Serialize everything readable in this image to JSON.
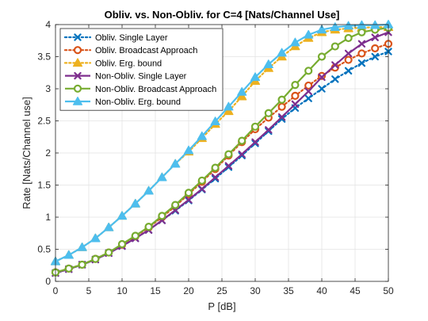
{
  "chart_data": {
    "type": "line",
    "title": "Obliv. vs. Non-Obliv. for C=4 [Nats/Channel Use]",
    "xlabel": "P [dB]",
    "ylabel": "Rate [Nats/Channel use]",
    "xlim": [
      0,
      50
    ],
    "ylim": [
      0,
      4
    ],
    "xticks": [
      0,
      5,
      10,
      15,
      20,
      25,
      30,
      35,
      40,
      45,
      50
    ],
    "yticks": [
      0,
      0.5,
      1,
      1.5,
      2,
      2.5,
      3,
      3.5,
      4
    ],
    "xtick_labels": [
      "0",
      "5",
      "10",
      "15",
      "20",
      "25",
      "30",
      "35",
      "40",
      "45",
      "50"
    ],
    "ytick_labels": [
      "0",
      "0.5",
      "1",
      "1.5",
      "2",
      "2.5",
      "3",
      "3.5",
      "4"
    ],
    "grid": true,
    "legend_position": "top-left",
    "x": [
      0,
      2,
      4,
      6,
      8,
      10,
      12,
      14,
      16,
      18,
      20,
      22,
      24,
      26,
      28,
      30,
      32,
      34,
      36,
      38,
      40,
      42,
      44,
      46,
      48,
      50
    ],
    "series": [
      {
        "name": "Obliv. Single Layer",
        "color": "#0072BD",
        "dash": "dotted",
        "marker": "x",
        "values": [
          0.13,
          0.19,
          0.26,
          0.34,
          0.44,
          0.55,
          0.67,
          0.8,
          0.95,
          1.1,
          1.26,
          1.43,
          1.6,
          1.78,
          1.96,
          2.15,
          2.34,
          2.53,
          2.7,
          2.85,
          3.0,
          3.15,
          3.28,
          3.4,
          3.5,
          3.58
        ]
      },
      {
        "name": "Obliv. Broadcast Approach",
        "color": "#D95319",
        "dash": "dotted",
        "marker": "circle",
        "values": [
          0.14,
          0.2,
          0.26,
          0.35,
          0.45,
          0.57,
          0.7,
          0.84,
          1.0,
          1.17,
          1.36,
          1.55,
          1.75,
          1.96,
          2.17,
          2.37,
          2.55,
          2.72,
          2.89,
          3.05,
          3.2,
          3.33,
          3.45,
          3.55,
          3.63,
          3.7
        ]
      },
      {
        "name": "Obliv. Erg. bound",
        "color": "#EDB120",
        "dash": "dotted",
        "marker": "triangle",
        "values": [
          0.31,
          0.41,
          0.53,
          0.67,
          0.84,
          1.02,
          1.21,
          1.41,
          1.62,
          1.83,
          2.02,
          2.23,
          2.45,
          2.65,
          2.88,
          3.12,
          3.32,
          3.5,
          3.66,
          3.79,
          3.88,
          3.92,
          3.94,
          3.95,
          3.96,
          3.96
        ]
      },
      {
        "name": "Non-Obliv. Single Layer",
        "color": "#7E2F8E",
        "dash": "solid",
        "marker": "x",
        "values": [
          0.13,
          0.19,
          0.26,
          0.34,
          0.44,
          0.55,
          0.67,
          0.8,
          0.95,
          1.11,
          1.27,
          1.44,
          1.62,
          1.8,
          1.98,
          2.17,
          2.36,
          2.56,
          2.76,
          2.96,
          3.18,
          3.37,
          3.55,
          3.7,
          3.8,
          3.88
        ]
      },
      {
        "name": "Non-Obliv. Broadcast Approach",
        "color": "#77AC30",
        "dash": "solid",
        "marker": "circle",
        "values": [
          0.14,
          0.2,
          0.26,
          0.35,
          0.45,
          0.58,
          0.71,
          0.85,
          1.02,
          1.19,
          1.38,
          1.57,
          1.77,
          1.98,
          2.19,
          2.41,
          2.62,
          2.83,
          3.06,
          3.28,
          3.5,
          3.66,
          3.79,
          3.88,
          3.92,
          3.95
        ]
      },
      {
        "name": "Non-Obliv. Erg. bound",
        "color": "#4DBEEE",
        "dash": "solid",
        "marker": "triangle",
        "values": [
          0.31,
          0.41,
          0.53,
          0.67,
          0.84,
          1.02,
          1.21,
          1.41,
          1.62,
          1.83,
          2.04,
          2.26,
          2.49,
          2.72,
          2.95,
          3.18,
          3.38,
          3.56,
          3.72,
          3.84,
          3.92,
          3.96,
          3.98,
          3.99,
          3.99,
          4.0
        ]
      }
    ]
  }
}
